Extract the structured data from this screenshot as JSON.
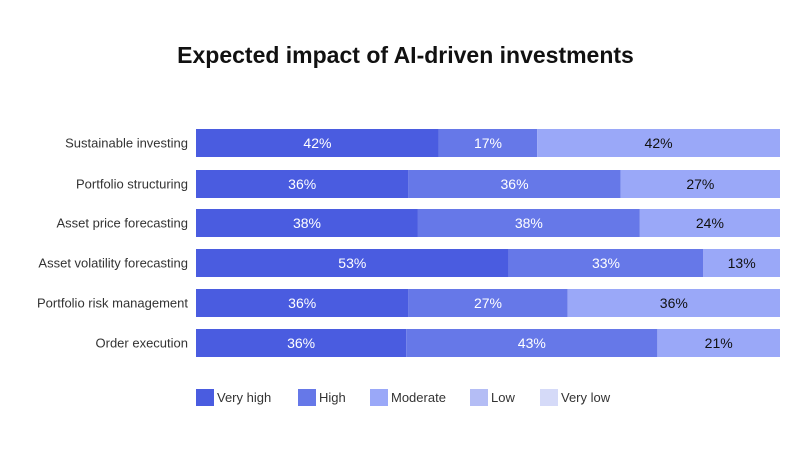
{
  "chart_data": {
    "type": "bar",
    "orientation": "horizontal",
    "stacked": true,
    "title": "Expected impact of AI-driven investments",
    "categories": [
      "Sustainable investing",
      "Portfolio structuring",
      "Asset price forecasting",
      "Asset volatility forecasting",
      "Portfolio risk management",
      "Order execution"
    ],
    "series": [
      {
        "name": "Very high",
        "color": "#4a5ce0",
        "values": [
          42,
          36,
          38,
          53,
          36,
          36
        ]
      },
      {
        "name": "High",
        "color": "#6678e8",
        "values": [
          17,
          36,
          38,
          33,
          27,
          43
        ]
      },
      {
        "name": "Moderate",
        "color": "#9aa8f8",
        "values": [
          42,
          27,
          24,
          13,
          36,
          21
        ]
      },
      {
        "name": "Low",
        "color": "#b4bdf5",
        "values": [
          0,
          0,
          0,
          0,
          0,
          0
        ]
      },
      {
        "name": "Very low",
        "color": "#d5daf8",
        "values": [
          0,
          0,
          0,
          0,
          0,
          0
        ]
      }
    ],
    "unit": "%",
    "legend_position": "bottom-left",
    "grid": false
  }
}
